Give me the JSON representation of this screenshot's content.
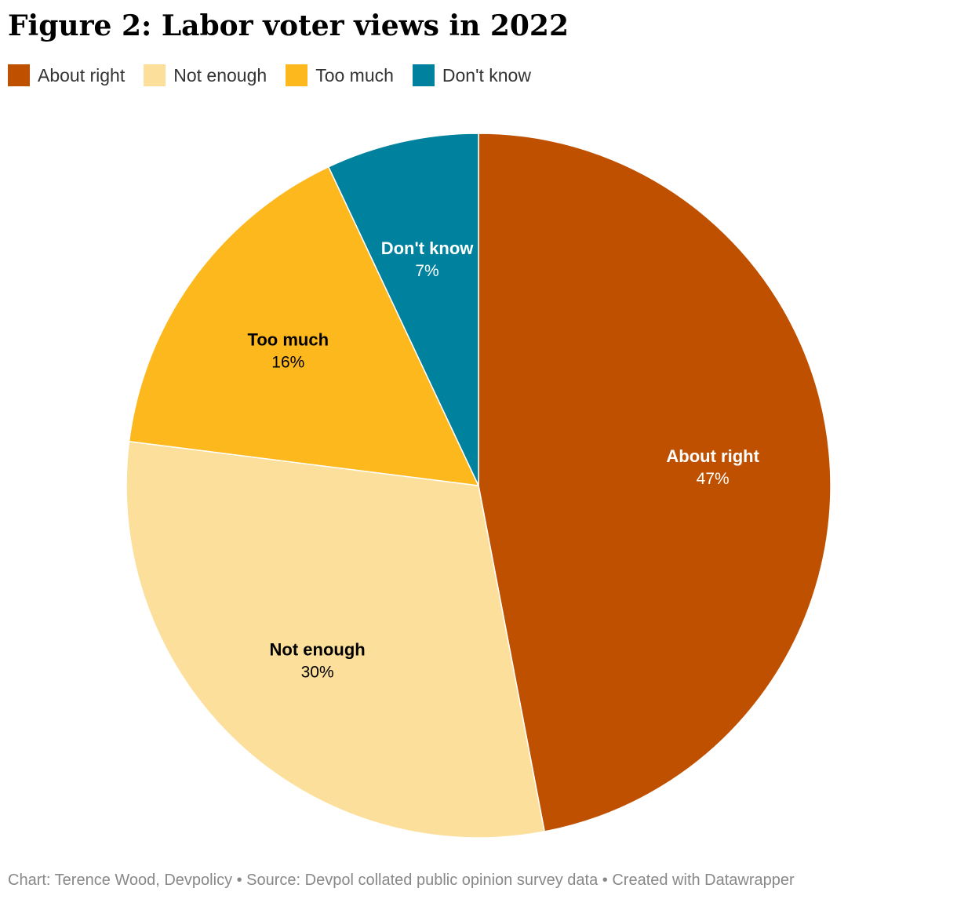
{
  "title": "Figure 2: Labor voter views in 2022",
  "footer": "Chart: Terence Wood, Devpolicy • Source: Devpol collated public opinion survey data • Created with Datawrapper",
  "chart_data": {
    "type": "pie",
    "categories": [
      "About right",
      "Not enough",
      "Too much",
      "Don't know"
    ],
    "values": [
      47,
      30,
      16,
      7
    ],
    "labels": [
      "47%",
      "30%",
      "16%",
      "7%"
    ],
    "colors": [
      "#bf5000",
      "#fbdf9b",
      "#fdb81e",
      "#00819d"
    ],
    "label_colors": [
      "#ffffff",
      "#000000",
      "#000000",
      "#ffffff"
    ],
    "legend_position": "top-left"
  }
}
